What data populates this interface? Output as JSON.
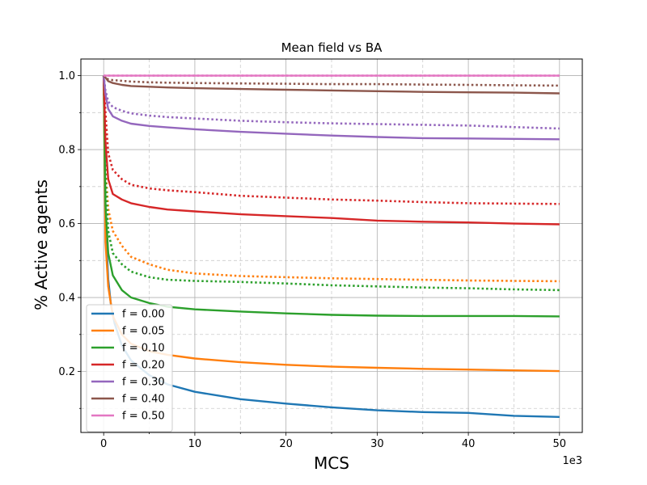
{
  "chart_data": {
    "type": "line",
    "title": "Mean field vs BA",
    "xlabel": "MCS",
    "ylabel": "% Active agents",
    "x_offset_label": "1e3",
    "xlim": [
      -2.5,
      52.5
    ],
    "ylim": [
      0.035,
      1.045
    ],
    "x_ticks": [
      0,
      10,
      20,
      30,
      40,
      50
    ],
    "x_tick_labels": [
      "0",
      "10",
      "20",
      "30",
      "40",
      "50"
    ],
    "y_ticks": [
      0.2,
      0.4,
      0.6,
      0.8,
      1.0
    ],
    "y_tick_labels": [
      "0.2",
      "0.4",
      "0.6",
      "0.8",
      "1.0"
    ],
    "grid": true,
    "legend_position": "lower-left",
    "series": [
      {
        "name": "f = 0.00",
        "color": "#1f77b4",
        "solid": {
          "x": [
            0,
            0.15,
            0.3,
            0.5,
            0.8,
            1.2,
            2,
            3,
            5,
            7,
            10,
            15,
            20,
            25,
            30,
            35,
            40,
            45,
            50
          ],
          "y": [
            1.0,
            0.7,
            0.55,
            0.45,
            0.38,
            0.33,
            0.27,
            0.23,
            0.19,
            0.165,
            0.145,
            0.125,
            0.113,
            0.103,
            0.095,
            0.09,
            0.088,
            0.08,
            0.077
          ]
        },
        "dotted": null
      },
      {
        "name": "f = 0.05",
        "color": "#ff7f0e",
        "solid": {
          "x": [
            0,
            0.2,
            0.5,
            1,
            2,
            3,
            5,
            7,
            10,
            15,
            20,
            25,
            30,
            35,
            40,
            45,
            50
          ],
          "y": [
            1.0,
            0.55,
            0.43,
            0.35,
            0.3,
            0.275,
            0.255,
            0.245,
            0.235,
            0.225,
            0.218,
            0.213,
            0.21,
            0.207,
            0.205,
            0.203,
            0.201
          ]
        },
        "dotted": {
          "x": [
            0,
            0.2,
            0.5,
            1,
            2,
            3,
            5,
            7,
            10,
            15,
            20,
            25,
            30,
            35,
            40,
            45,
            50
          ],
          "y": [
            1.0,
            0.75,
            0.64,
            0.58,
            0.54,
            0.51,
            0.49,
            0.475,
            0.465,
            0.458,
            0.455,
            0.452,
            0.45,
            0.448,
            0.446,
            0.445,
            0.444
          ]
        }
      },
      {
        "name": "f = 0.10",
        "color": "#2ca02c",
        "solid": {
          "x": [
            0,
            0.2,
            0.5,
            1,
            2,
            3,
            5,
            7,
            10,
            15,
            20,
            25,
            30,
            35,
            40,
            45,
            50
          ],
          "y": [
            1.0,
            0.65,
            0.52,
            0.46,
            0.42,
            0.4,
            0.385,
            0.375,
            0.368,
            0.362,
            0.357,
            0.353,
            0.351,
            0.35,
            0.35,
            0.35,
            0.349
          ]
        },
        "dotted": {
          "x": [
            0,
            0.2,
            0.5,
            1,
            2,
            3,
            5,
            7,
            10,
            15,
            20,
            25,
            30,
            35,
            40,
            45,
            50
          ],
          "y": [
            1.0,
            0.73,
            0.58,
            0.52,
            0.49,
            0.47,
            0.455,
            0.448,
            0.445,
            0.442,
            0.438,
            0.433,
            0.43,
            0.427,
            0.425,
            0.422,
            0.42
          ]
        }
      },
      {
        "name": "f = 0.20",
        "color": "#d62728",
        "solid": {
          "x": [
            0,
            0.2,
            0.5,
            1,
            2,
            3,
            5,
            7,
            10,
            15,
            20,
            25,
            30,
            35,
            40,
            45,
            50
          ],
          "y": [
            1.0,
            0.82,
            0.72,
            0.68,
            0.665,
            0.655,
            0.645,
            0.638,
            0.633,
            0.625,
            0.62,
            0.615,
            0.608,
            0.605,
            0.603,
            0.6,
            0.598
          ]
        },
        "dotted": {
          "x": [
            0,
            0.2,
            0.5,
            1,
            2,
            3,
            5,
            7,
            10,
            15,
            20,
            25,
            30,
            35,
            40,
            45,
            50
          ],
          "y": [
            1.0,
            0.9,
            0.79,
            0.745,
            0.72,
            0.705,
            0.695,
            0.69,
            0.685,
            0.675,
            0.67,
            0.665,
            0.662,
            0.658,
            0.655,
            0.654,
            0.653
          ]
        }
      },
      {
        "name": "f = 0.30",
        "color": "#9467bd",
        "solid": {
          "x": [
            0,
            0.2,
            0.5,
            1,
            2,
            3,
            5,
            7,
            10,
            15,
            20,
            25,
            30,
            35,
            40,
            45,
            50
          ],
          "y": [
            1.0,
            0.95,
            0.91,
            0.89,
            0.878,
            0.87,
            0.864,
            0.86,
            0.855,
            0.848,
            0.843,
            0.838,
            0.834,
            0.831,
            0.83,
            0.829,
            0.828
          ]
        },
        "dotted": {
          "x": [
            0,
            0.2,
            0.5,
            1,
            2,
            3,
            5,
            7,
            10,
            15,
            20,
            25,
            30,
            35,
            40,
            45,
            50
          ],
          "y": [
            1.0,
            0.96,
            0.93,
            0.915,
            0.905,
            0.898,
            0.892,
            0.888,
            0.884,
            0.878,
            0.874,
            0.871,
            0.869,
            0.867,
            0.865,
            0.861,
            0.857
          ]
        }
      },
      {
        "name": "f = 0.40",
        "color": "#8c564b",
        "solid": {
          "x": [
            0,
            0.2,
            0.5,
            1,
            2,
            3,
            5,
            7,
            10,
            15,
            20,
            25,
            30,
            35,
            40,
            45,
            50
          ],
          "y": [
            1.0,
            0.995,
            0.985,
            0.98,
            0.975,
            0.972,
            0.97,
            0.968,
            0.966,
            0.964,
            0.962,
            0.96,
            0.958,
            0.956,
            0.955,
            0.954,
            0.952
          ]
        },
        "dotted": {
          "x": [
            0,
            0.2,
            0.5,
            1,
            2,
            3,
            5,
            7,
            10,
            15,
            20,
            25,
            30,
            35,
            40,
            45,
            50
          ],
          "y": [
            1.0,
            0.995,
            0.99,
            0.988,
            0.986,
            0.984,
            0.982,
            0.981,
            0.98,
            0.979,
            0.978,
            0.977,
            0.977,
            0.976,
            0.975,
            0.974,
            0.973
          ]
        }
      },
      {
        "name": "f = 0.50",
        "color": "#e377c2",
        "solid": {
          "x": [
            0,
            50
          ],
          "y": [
            1.0,
            1.0
          ]
        },
        "dotted": {
          "x": [
            0,
            50
          ],
          "y": [
            1.0,
            1.0
          ]
        }
      }
    ]
  }
}
